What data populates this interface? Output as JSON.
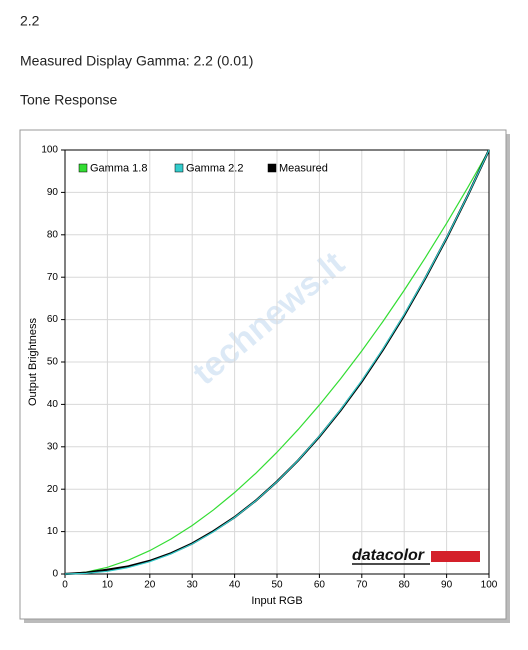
{
  "document": {
    "heading": "2.2",
    "gamma_line": "Measured Display Gamma: 2.2 (0.01)",
    "section": "Tone Response"
  },
  "chart_data": {
    "type": "line",
    "xlabel": "Input RGB",
    "ylabel": "Output Brightness",
    "logo": "datacolor",
    "watermark": "technews.lt",
    "x": [
      0,
      5,
      10,
      15,
      20,
      25,
      30,
      35,
      40,
      45,
      50,
      55,
      60,
      65,
      70,
      75,
      80,
      85,
      90,
      95,
      100
    ],
    "series": [
      {
        "name": "Gamma 1.8",
        "color": "#33dd33",
        "width": 1.2,
        "values": [
          0,
          0.46,
          1.58,
          3.29,
          5.52,
          8.25,
          11.45,
          15.11,
          19.22,
          23.76,
          28.72,
          34.09,
          39.87,
          46.05,
          52.62,
          59.58,
          66.92,
          74.64,
          82.72,
          91.18,
          100
        ]
      },
      {
        "name": "Measured",
        "color": "#000000",
        "width": 2.2,
        "values": [
          0,
          0.3,
          1.0,
          1.8,
          3.1,
          4.9,
          7.2,
          10.1,
          13.4,
          17.3,
          21.8,
          26.8,
          32.4,
          38.6,
          45.4,
          52.9,
          61.0,
          69.8,
          79.2,
          89.3,
          100
        ]
      },
      {
        "name": "Gamma 2.2",
        "color": "#33cccc",
        "width": 1.2,
        "values": [
          0,
          0.14,
          0.63,
          1.54,
          2.9,
          4.74,
          7.07,
          9.93,
          13.32,
          17.26,
          21.76,
          26.84,
          32.51,
          38.76,
          45.63,
          53.1,
          61.21,
          69.94,
          79.31,
          89.33,
          100
        ]
      }
    ],
    "legend_order": [
      0,
      2,
      1
    ],
    "xlim": [
      0,
      100
    ],
    "ylim": [
      0,
      100
    ],
    "xticks": [
      0,
      10,
      20,
      30,
      40,
      50,
      60,
      70,
      80,
      90,
      100
    ],
    "yticks": [
      0,
      10,
      20,
      30,
      40,
      50,
      60,
      70,
      80,
      90,
      100
    ],
    "grid": true,
    "legend": "top-left"
  }
}
